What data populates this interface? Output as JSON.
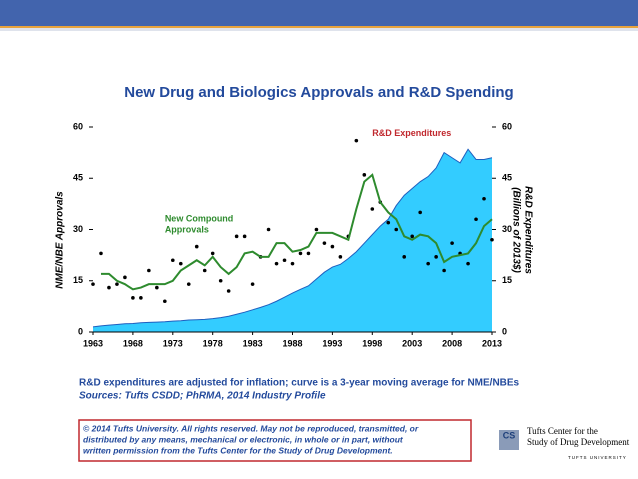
{
  "chart_data": {
    "type": "line",
    "title": "New Drug and Biologics Approvals and R&D Spending",
    "ylabel": "NME/NBE Approvals",
    "y2label": [
      "R&D Expenditures",
      "(Billions of 2013$)"
    ],
    "annotations": [
      {
        "lines": [
          "R&D Expenditures"
        ],
        "color": "#c0282e",
        "x": 1998,
        "y": 58
      },
      {
        "lines": [
          "New Compound",
          "Approvals"
        ],
        "color": "#2e8b2e",
        "x": 1972,
        "y": 33
      }
    ],
    "x": [
      1963,
      1964,
      1965,
      1966,
      1967,
      1968,
      1969,
      1970,
      1971,
      1972,
      1973,
      1974,
      1975,
      1976,
      1977,
      1978,
      1979,
      1980,
      1981,
      1982,
      1983,
      1984,
      1985,
      1986,
      1987,
      1988,
      1989,
      1990,
      1991,
      1992,
      1993,
      1994,
      1995,
      1996,
      1997,
      1998,
      1999,
      2000,
      2001,
      2002,
      2003,
      2004,
      2005,
      2006,
      2007,
      2008,
      2009,
      2010,
      2011,
      2012,
      2013
    ],
    "series": [
      {
        "style": "area",
        "axis": "y2",
        "color": "#33ccff",
        "edge": "#1f5fbf",
        "values": [
          1.5,
          1.8,
          2.0,
          2.2,
          2.4,
          2.5,
          2.7,
          2.8,
          2.9,
          3.0,
          3.2,
          3.3,
          3.5,
          3.6,
          3.7,
          3.9,
          4.2,
          4.6,
          5.2,
          5.8,
          6.5,
          7.2,
          8.0,
          9.0,
          10.2,
          11.4,
          12.5,
          13.5,
          15.5,
          17.5,
          19,
          19.8,
          21.5,
          23.5,
          26,
          28.5,
          31,
          33,
          37,
          40,
          42,
          44,
          45.5,
          48,
          52.5,
          51,
          49.5,
          53.5,
          50.5,
          50.5,
          51
        ]
      },
      {
        "style": "dots",
        "color": "#000000",
        "values": [
          14,
          23,
          13,
          14,
          16,
          10,
          10,
          18,
          13,
          9,
          21,
          20,
          14,
          25,
          18,
          23,
          15,
          12,
          28,
          28,
          14,
          22,
          30,
          20,
          21,
          20,
          23,
          23,
          30,
          26,
          25,
          22,
          28,
          56,
          46,
          36,
          38,
          32,
          30,
          22,
          28,
          35,
          20,
          22,
          18,
          26,
          23,
          20,
          33,
          39,
          27
        ]
      },
      {
        "style": "line",
        "color": "#2e8b2e",
        "values": [
          null,
          17,
          17,
          15,
          14,
          12.5,
          13,
          14,
          14,
          14,
          15,
          18,
          19.5,
          21,
          19.5,
          22,
          19,
          17,
          19,
          23,
          23.5,
          22,
          22,
          26,
          26,
          23.5,
          24,
          25,
          29,
          29,
          29,
          28,
          27,
          36,
          44,
          46,
          38,
          35,
          33,
          28,
          27,
          28.5,
          28,
          26,
          20.5,
          22,
          22.5,
          23,
          26,
          31,
          33
        ]
      }
    ],
    "xlim": [
      1963,
      2013
    ],
    "xticks": [
      1963,
      1968,
      1973,
      1978,
      1983,
      1988,
      1993,
      1998,
      2003,
      2008,
      2013
    ],
    "ylim": [
      0,
      60
    ],
    "yticks": [
      0,
      15,
      30,
      45,
      60
    ],
    "y2lim": [
      0,
      60
    ],
    "y2ticks": [
      0,
      15,
      30,
      45,
      60
    ]
  },
  "notes": [
    "R&D expenditures are adjusted for inflation; curve is a 3-year moving average for NME/NBEs",
    "Sources: Tufts CSDD; PhRMA, 2014 Industry Profile"
  ],
  "copyright": [
    "© 2014 Tufts University. All rights reserved. May not be reproduced, transmitted, or",
    "distributed by any means, mechanical or electronic, in whole or in part, without",
    "written permission from the Tufts Center for the Study of Drug Development."
  ],
  "logo": {
    "mark": "CS",
    "lines": [
      "Tufts Center for the",
      "Study of Drug Development"
    ],
    "university": "TUFTS UNIVERSITY"
  }
}
